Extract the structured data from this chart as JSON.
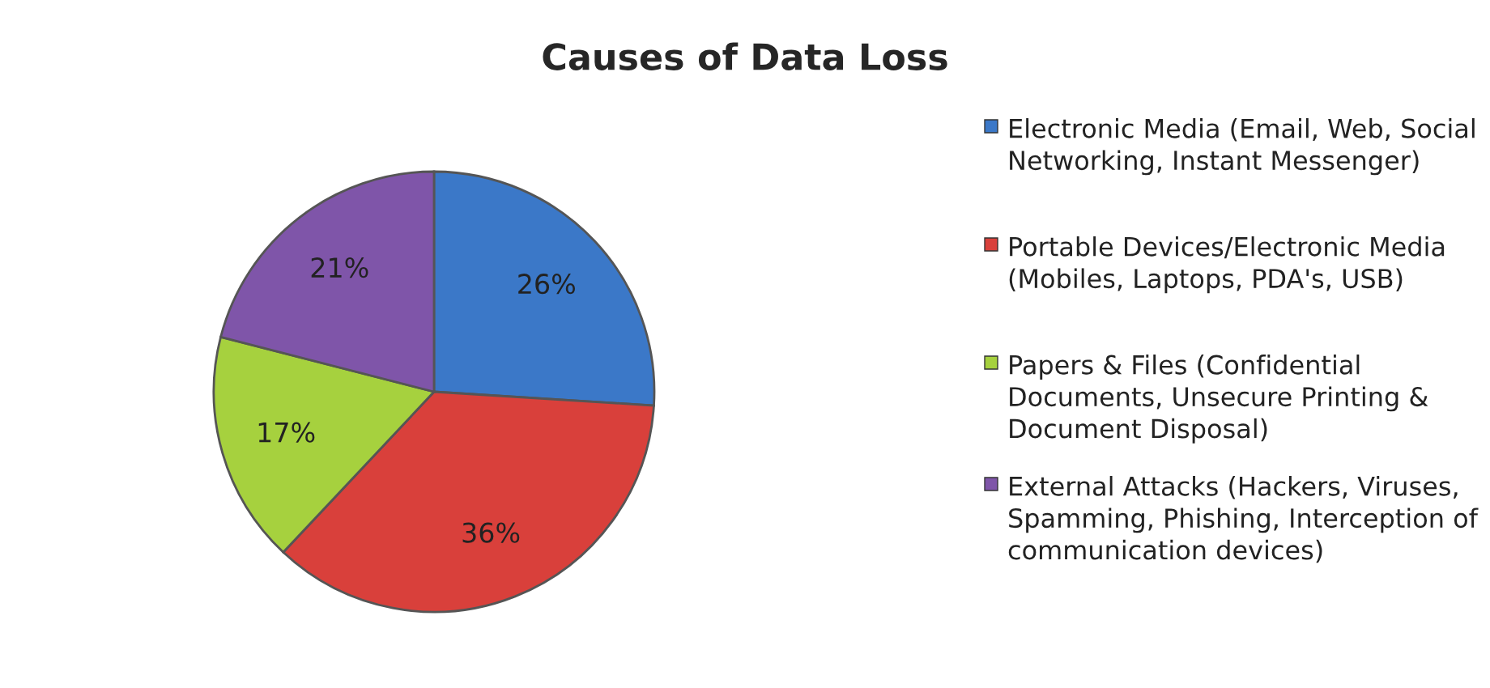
{
  "chart_data": {
    "type": "pie",
    "title": "Causes of Data Loss",
    "categories": [
      "Electronic Media (Email, Web, Social Networking, Instant Messenger)",
      "Portable Devices/Electronic Media (Mobiles, Laptops, PDA's, USB)",
      "Papers & Files (Confidential Documents, Unsecure Printing & Document Disposal)",
      "External Attacks (Hackers, Viruses, Spamming, Phishing, Interception of communication devices)"
    ],
    "values": [
      26,
      36,
      17,
      21
    ],
    "colors": [
      "#3b78c8",
      "#d9403b",
      "#a6d13e",
      "#7f55a9"
    ],
    "value_labels": [
      "26%",
      "36%",
      "17%",
      "21%"
    ],
    "legend": "right"
  }
}
